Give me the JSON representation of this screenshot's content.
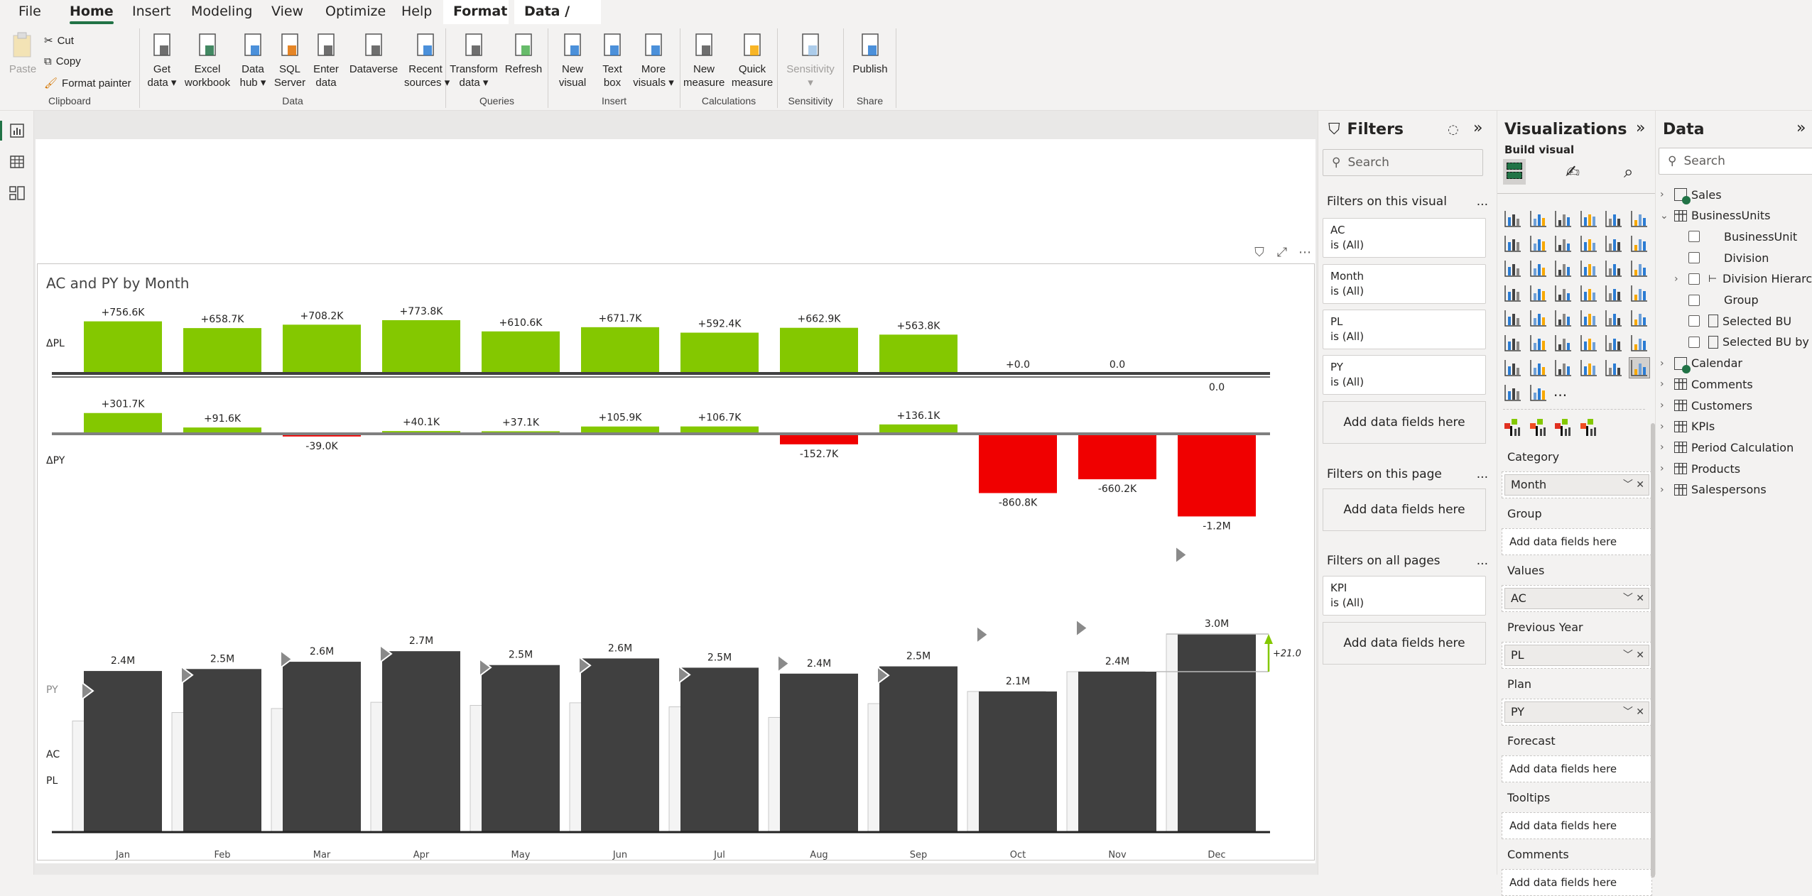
{
  "tabs": [
    "File",
    "Home",
    "Insert",
    "Modeling",
    "View",
    "Optimize",
    "Help",
    "Format",
    "Data / Drill"
  ],
  "ribbon": {
    "clipboard": {
      "label": "Clipboard",
      "paste": "Paste",
      "cut": "Cut",
      "copy": "Copy",
      "format_painter": "Format painter"
    },
    "data": {
      "label": "Data",
      "buttons": [
        [
          "Get",
          "data ▾"
        ],
        [
          "Excel",
          "workbook"
        ],
        [
          "Data",
          "hub ▾"
        ],
        [
          "SQL",
          "Server"
        ],
        [
          "Enter",
          "data"
        ],
        [
          "Dataverse",
          ""
        ],
        [
          "Recent",
          "sources ▾"
        ]
      ]
    },
    "queries": {
      "label": "Queries",
      "buttons": [
        [
          "Transform",
          "data ▾"
        ],
        [
          "Refresh",
          ""
        ]
      ]
    },
    "insert": {
      "label": "Insert",
      "buttons": [
        [
          "New",
          "visual"
        ],
        [
          "Text",
          "box"
        ],
        [
          "More",
          "visuals ▾"
        ]
      ]
    },
    "calculations": {
      "label": "Calculations",
      "buttons": [
        [
          "New",
          "measure"
        ],
        [
          "Quick",
          "measure"
        ]
      ]
    },
    "sensitivity": {
      "label": "Sensitivity",
      "buttons": [
        [
          "Sensitivity",
          "▾"
        ]
      ]
    },
    "share": {
      "label": "Share",
      "buttons": [
        [
          "Publish",
          ""
        ]
      ]
    }
  },
  "filters": {
    "title": "Filters",
    "search_placeholder": "Search",
    "on_visual": "Filters on this visual",
    "visual_cards": [
      {
        "field": "AC",
        "state": "is (All)"
      },
      {
        "field": "Month",
        "state": "is (All)"
      },
      {
        "field": "PL",
        "state": "is (All)"
      },
      {
        "field": "PY",
        "state": "is (All)"
      }
    ],
    "add_fields": "Add data fields here",
    "on_page": "Filters on this page",
    "on_all": "Filters on all pages",
    "all_cards": [
      {
        "field": "KPI",
        "state": "is (All)"
      }
    ],
    "more": "..."
  },
  "visualizations": {
    "title": "Visualizations",
    "build_visual": "Build visual",
    "more_visuals": "...",
    "wells": [
      {
        "label": "Category",
        "value": "Month"
      },
      {
        "label": "Group",
        "value": null
      },
      {
        "label": "Values",
        "value": "AC"
      },
      {
        "label": "Previous Year",
        "value": "PL"
      },
      {
        "label": "Plan",
        "value": "PY"
      },
      {
        "label": "Forecast",
        "value": null
      },
      {
        "label": "Tooltips",
        "value": null
      },
      {
        "label": "Comments",
        "value": null
      }
    ],
    "add_fields": "Add data fields here"
  },
  "data_pane": {
    "title": "Data",
    "search_placeholder": "Search",
    "items": [
      {
        "label": "Sales",
        "kind": "measure-table",
        "level": 0,
        "expand": "collapsed"
      },
      {
        "label": "BusinessUnits",
        "kind": "table",
        "level": 0,
        "expand": "expanded"
      },
      {
        "label": "BusinessUnit",
        "kind": "field",
        "level": 1
      },
      {
        "label": "Division",
        "kind": "field",
        "level": 1
      },
      {
        "label": "Division Hierarchy",
        "kind": "hierarchy",
        "level": 1,
        "expand": "collapsed"
      },
      {
        "label": "Group",
        "kind": "field",
        "level": 1
      },
      {
        "label": "Selected BU",
        "kind": "measure",
        "level": 1
      },
      {
        "label": "Selected BU by C...",
        "kind": "measure",
        "level": 1
      },
      {
        "label": "Calendar",
        "kind": "measure-table",
        "level": 0,
        "expand": "collapsed"
      },
      {
        "label": "Comments",
        "kind": "table",
        "level": 0,
        "expand": "collapsed"
      },
      {
        "label": "Customers",
        "kind": "table",
        "level": 0,
        "expand": "collapsed"
      },
      {
        "label": "KPIs",
        "kind": "table",
        "level": 0,
        "expand": "collapsed"
      },
      {
        "label": "Period Calculation",
        "kind": "table",
        "level": 0,
        "expand": "collapsed"
      },
      {
        "label": "Products",
        "kind": "table",
        "level": 0,
        "expand": "collapsed"
      },
      {
        "label": "Salespersons",
        "kind": "table",
        "level": 0,
        "expand": "collapsed"
      }
    ]
  },
  "colors": {
    "positive": "#84c800",
    "negative": "#f00000",
    "ac": "#404040",
    "accent": "#217346"
  },
  "chart_data": {
    "type": "bar",
    "title": "AC and PY by Month",
    "categories": [
      "Jan",
      "Feb",
      "Mar",
      "Apr",
      "May",
      "Jun",
      "Jul",
      "Aug",
      "Sep",
      "Oct",
      "Nov",
      "Dec"
    ],
    "row_labels": {
      "dpl": "ΔPL",
      "dpy": "ΔPY",
      "py": "PY",
      "ac": "AC",
      "pl": "PL"
    },
    "ac": {
      "name": "AC",
      "unit": "M",
      "values": [
        2.44,
        2.47,
        2.58,
        2.74,
        2.53,
        2.63,
        2.49,
        2.4,
        2.51,
        2.13,
        2.43,
        3.0
      ],
      "labels": [
        "2.4M",
        "2.5M",
        "2.6M",
        "2.7M",
        "2.5M",
        "2.6M",
        "2.5M",
        "2.4M",
        "2.5M",
        "2.1M",
        "2.4M",
        "3.0M"
      ]
    },
    "delta_pl": {
      "name": "ΔPL",
      "unit": "K",
      "values": [
        756.6,
        658.7,
        708.2,
        773.8,
        610.6,
        671.7,
        592.4,
        662.9,
        563.8,
        0,
        0,
        0
      ],
      "labels": [
        "+756.6K",
        "+658.7K",
        "+708.2K",
        "+773.8K",
        "+610.6K",
        "+671.7K",
        "+592.4K",
        "+662.9K",
        "+563.8K",
        "+0.0",
        "0.0",
        "0.0"
      ]
    },
    "delta_py": {
      "name": "ΔPY",
      "unit": "K",
      "values": [
        301.7,
        91.6,
        -39.0,
        40.1,
        37.1,
        105.9,
        106.7,
        -152.7,
        136.1,
        -860.8,
        -660.2,
        -1200
      ],
      "labels": [
        "+301.7K",
        "+91.6K",
        "-39.0K",
        "+40.1K",
        "+37.1K",
        "+105.9K",
        "+106.7K",
        "-152.7K",
        "+136.1K",
        "-860.8K",
        "-660.2K",
        "-1.2M"
      ]
    },
    "variance_label": "+21.0"
  }
}
